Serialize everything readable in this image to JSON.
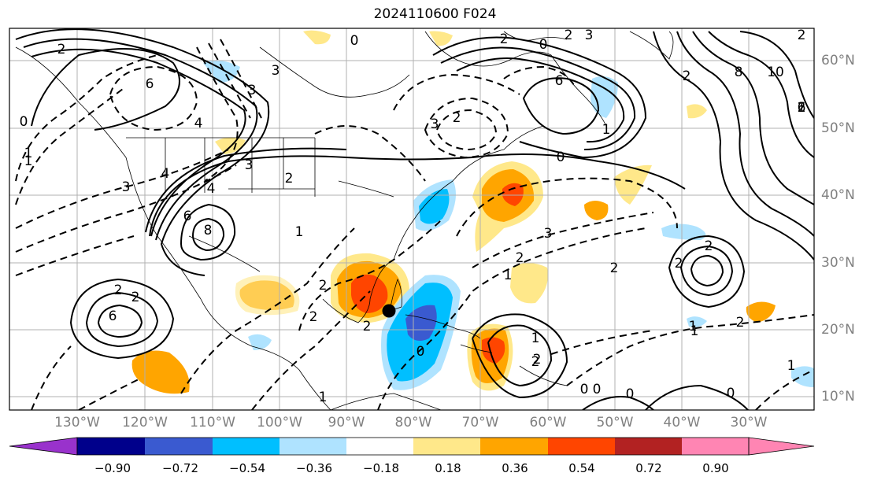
{
  "title": "2024110600 F024",
  "lon_labels": [
    "130°W",
    "120°W",
    "110°W",
    "100°W",
    "90°W",
    "80°W",
    "70°W",
    "60°W",
    "50°W",
    "40°W",
    "30°W"
  ],
  "lat_labels": [
    "60°N",
    "50°N",
    "40°N",
    "30°N",
    "20°N",
    "10°N"
  ],
  "colorbar": {
    "ticks": [
      "−0.90",
      "−0.72",
      "−0.54",
      "−0.36",
      "−0.18",
      "0.18",
      "0.36",
      "0.54",
      "0.72",
      "0.90"
    ],
    "colors": [
      "#9932cc",
      "#00008b",
      "#3a5ad0",
      "#00bfff",
      "#afe3ff",
      "#ffffff",
      "#ffe88a",
      "#ffa500",
      "#ff4500",
      "#b22222",
      "#ff85b3"
    ]
  },
  "contour_labels": [
    "0",
    "0",
    "2",
    "3",
    "3",
    "2",
    "6",
    "2",
    "3",
    "2",
    "6",
    "1",
    "2",
    "1",
    "8",
    "10",
    "6",
    "2",
    "1",
    "4",
    "3",
    "4",
    "6",
    "3",
    "2",
    "1",
    "2",
    "2",
    "2",
    "6",
    "2",
    "4",
    "8",
    "3",
    "0",
    "3",
    "2",
    "2",
    "1",
    "2",
    "2",
    "2",
    "2",
    "1",
    "2",
    "0",
    "1",
    "0",
    "0",
    "1",
    "0",
    "0",
    "2",
    "1",
    "2",
    "1",
    "0",
    "1"
  ],
  "marker": {
    "lon": -84.5,
    "lat": 23,
    "label": "storm-center"
  }
}
